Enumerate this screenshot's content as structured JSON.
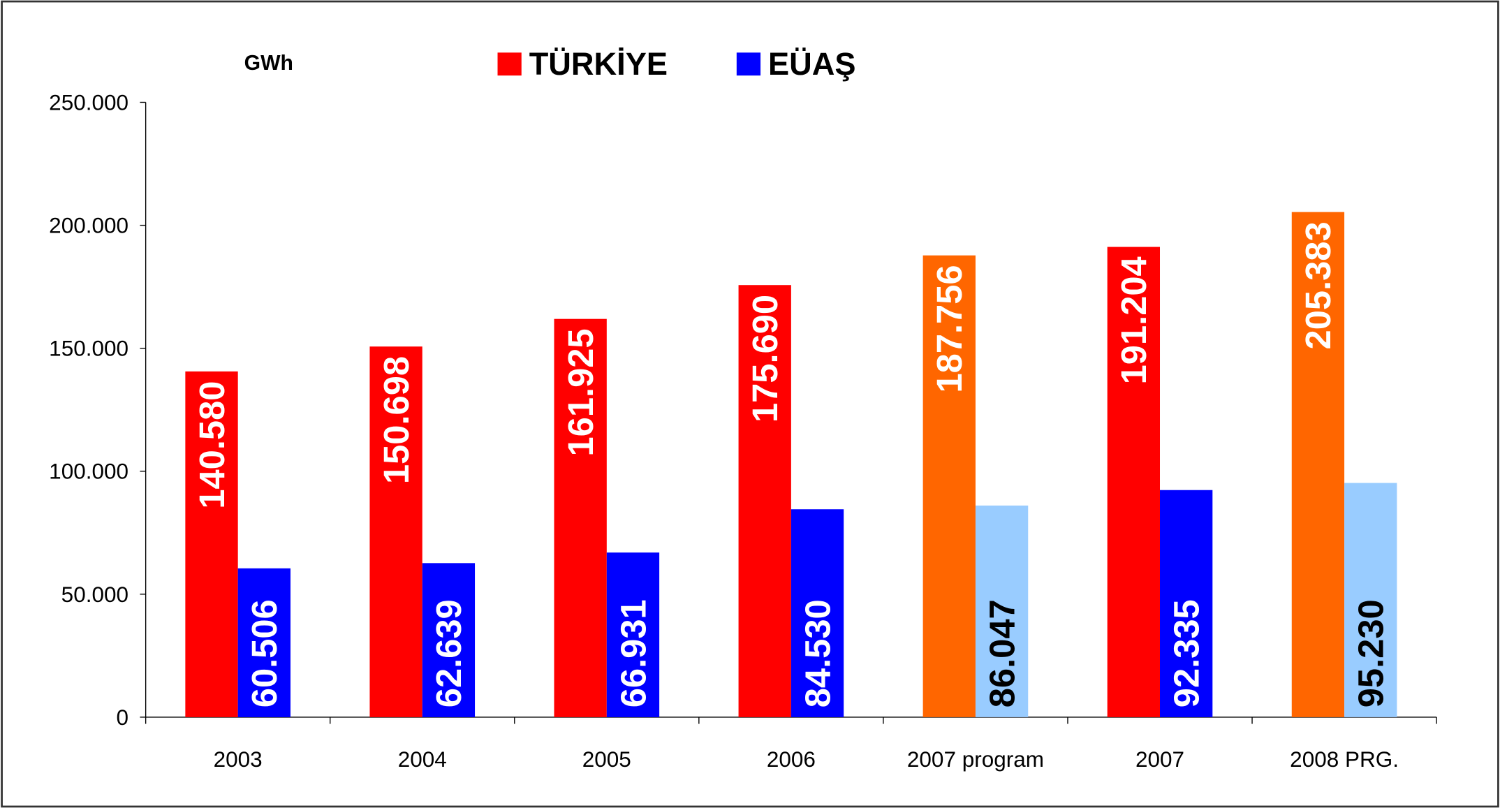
{
  "chart_data": {
    "type": "bar",
    "y_label": "GWh",
    "categories": [
      "2003",
      "2004",
      "2005",
      "2006",
      "2007 program",
      "2007",
      "2008 PRG."
    ],
    "series": [
      {
        "name": "TÜRKİYE",
        "color": "#ff0000",
        "colors": [
          "#ff0000",
          "#ff0000",
          "#ff0000",
          "#ff0000",
          "#ff6600",
          "#ff0000",
          "#ff6600"
        ],
        "label_colors": [
          "#ffffff",
          "#ffffff",
          "#ffffff",
          "#ffffff",
          "#ffffff",
          "#ffffff",
          "#ffffff"
        ],
        "values": [
          140580,
          150698,
          161925,
          175690,
          187756,
          191204,
          205383
        ],
        "value_labels": [
          "140.580",
          "150.698",
          "161.925",
          "175.690",
          "187.756",
          "191.204",
          "205.383"
        ]
      },
      {
        "name": "EÜAŞ",
        "color": "#0000ff",
        "colors": [
          "#0000ff",
          "#0000ff",
          "#0000ff",
          "#0000ff",
          "#99ccff",
          "#0000ff",
          "#99ccff"
        ],
        "label_colors": [
          "#ffffff",
          "#ffffff",
          "#ffffff",
          "#ffffff",
          "#000000",
          "#ffffff",
          "#000000"
        ],
        "values": [
          60506,
          62639,
          66931,
          84530,
          86047,
          92335,
          95230
        ],
        "value_labels": [
          "60.506",
          "62.639",
          "66.931",
          "84.530",
          "86.047",
          "92.335",
          "95.230"
        ]
      }
    ],
    "ylim": [
      0,
      250000
    ],
    "yticks": [
      {
        "value": 0,
        "label": "0"
      },
      {
        "value": 50000,
        "label": "50.000"
      },
      {
        "value": 100000,
        "label": "100.000"
      },
      {
        "value": 150000,
        "label": "150.000"
      },
      {
        "value": 200000,
        "label": "200.000"
      },
      {
        "value": 250000,
        "label": "250.000"
      }
    ],
    "grid": false
  }
}
